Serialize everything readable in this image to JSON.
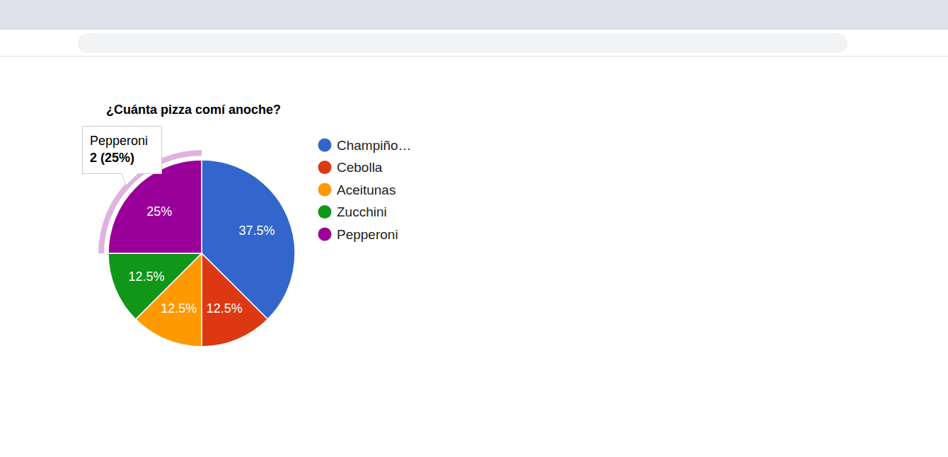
{
  "chart_data": {
    "type": "pie",
    "title": "¿Cuánta pizza comí anoche?",
    "categories": [
      "Champiño…",
      "Cebolla",
      "Aceitunas",
      "Zucchini",
      "Pepperoni"
    ],
    "values": [
      37.5,
      12.5,
      12.5,
      12.5,
      25
    ],
    "value_labels": [
      "37.5%",
      "12.5%",
      "12.5%",
      "12.5%",
      "25%"
    ],
    "colors": [
      "#3366cc",
      "#dc3912",
      "#ff9900",
      "#109618",
      "#990099"
    ],
    "data_labels": true,
    "legend": "right",
    "annotations": [
      {
        "category": "Pepperoni",
        "text": "2 (25%)"
      }
    ]
  }
}
